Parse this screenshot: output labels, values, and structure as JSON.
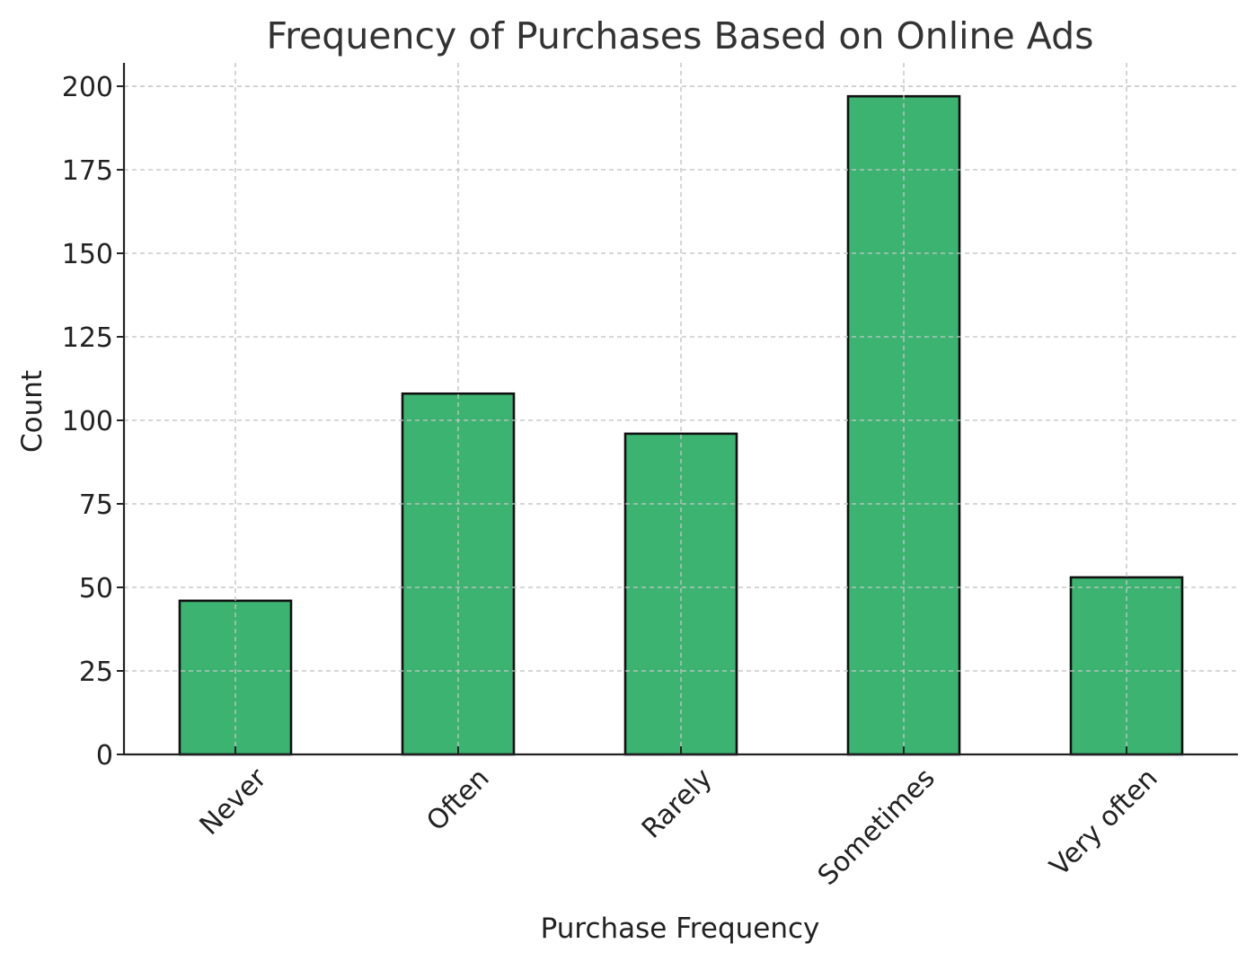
{
  "chart_data": {
    "type": "bar",
    "title": "Frequency of Purchases Based on Online Ads",
    "xlabel": "Purchase Frequency",
    "ylabel": "Count",
    "categories": [
      "Never",
      "Often",
      "Rarely",
      "Sometimes",
      "Very often"
    ],
    "values": [
      46,
      108,
      96,
      197,
      53
    ],
    "ylim": [
      0,
      207
    ],
    "yticks": [
      0,
      25,
      50,
      75,
      100,
      125,
      150,
      175,
      200
    ],
    "grid": true,
    "bar_color": "#3cb371",
    "edge_color": "#111111"
  }
}
